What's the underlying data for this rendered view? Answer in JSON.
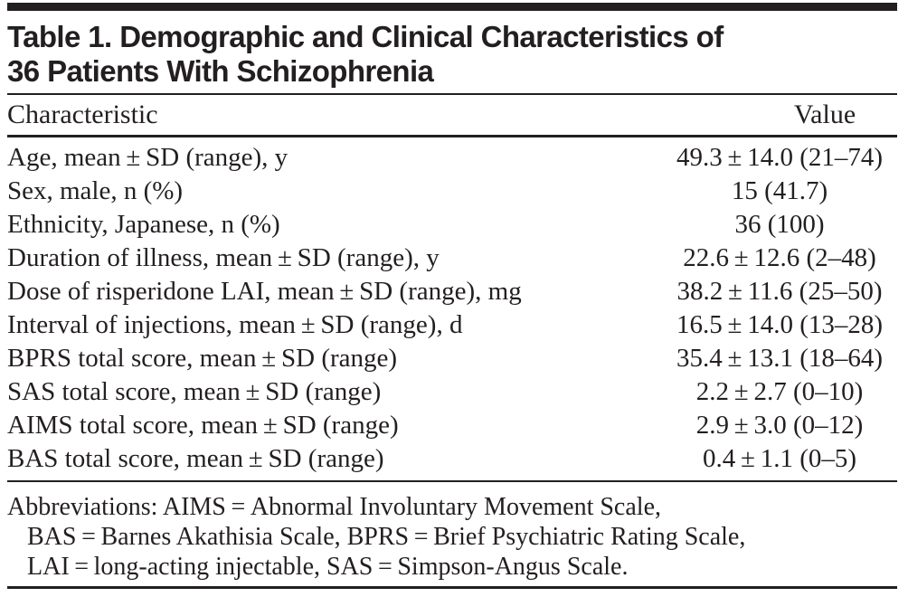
{
  "page": {
    "background": "#ffffff",
    "text_color": "#231f20",
    "rule_color": "#231f20"
  },
  "table": {
    "title_line1": "Table 1. Demographic and Clinical Characteristics of",
    "title_line2": "36 Patients With Schizophrenia",
    "columns": {
      "characteristic": "Characteristic",
      "value": "Value"
    },
    "rows": [
      {
        "characteristic": "Age, mean ± SD (range), y",
        "value": "49.3 ± 14.0 (21–74)"
      },
      {
        "characteristic": "Sex, male, n (%)",
        "value": "15 (41.7)"
      },
      {
        "characteristic": "Ethnicity, Japanese, n (%)",
        "value": "36 (100)"
      },
      {
        "characteristic": "Duration of illness, mean ± SD (range), y",
        "value": "22.6 ± 12.6 (2–48)"
      },
      {
        "characteristic": "Dose of risperidone LAI, mean ± SD (range), mg",
        "value": "38.2 ± 11.6 (25–50)"
      },
      {
        "characteristic": "Interval of injections, mean ± SD (range), d",
        "value": "16.5 ± 14.0 (13–28)"
      },
      {
        "characteristic": "BPRS total score, mean ± SD (range)",
        "value": "35.4 ± 13.1 (18–64)"
      },
      {
        "characteristic": "SAS total score, mean ± SD (range)",
        "value": "2.2 ± 2.7 (0–10)"
      },
      {
        "characteristic": "AIMS total score, mean ± SD (range)",
        "value": "2.9 ± 3.0 (0–12)"
      },
      {
        "characteristic": "BAS total score, mean ± SD (range)",
        "value": "0.4 ± 1.1 (0–5)"
      }
    ],
    "footnote_lines": [
      "Abbreviations: AIMS = Abnormal Involuntary Movement Scale,",
      "BAS = Barnes Akathisia Scale, BPRS = Brief Psychiatric Rating Scale,",
      "LAI = long-acting injectable, SAS = Simpson-Angus Scale."
    ]
  }
}
